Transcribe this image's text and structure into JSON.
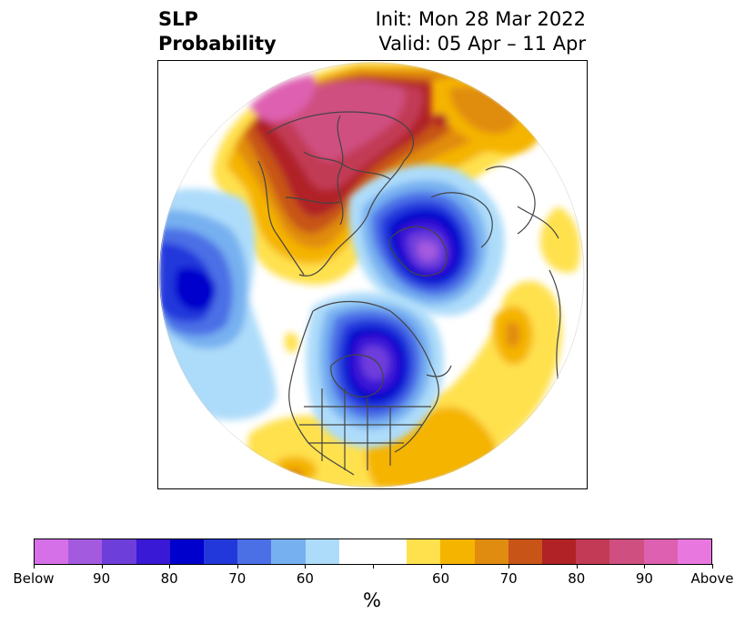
{
  "title": {
    "left": [
      "SLP",
      "Probability"
    ],
    "right": [
      "Init: Mon 28 Mar 2022",
      "Valid: 05 Apr – 11 Apr"
    ]
  },
  "colorbar": {
    "colors": [
      "#d670e8",
      "#a45adf",
      "#6e3edb",
      "#3a19d6",
      "#0000cc",
      "#2338db",
      "#4b70e6",
      "#77b0f0",
      "#addcfa",
      "#ffffff",
      "#ffffff",
      "#ffe14d",
      "#f5b400",
      "#e08c10",
      "#c85418",
      "#b02225",
      "#c23a55",
      "#cf5080",
      "#de60b0",
      "#e878e0"
    ],
    "labels": [
      "Below",
      "90",
      "80",
      "70",
      "60",
      "",
      "60",
      "70",
      "80",
      "90",
      "Above"
    ],
    "unit": "%"
  },
  "map": {
    "projection": "north-polar-stereographic",
    "coastline_color": "#444444",
    "features": [
      "below-normal-slp-north-pacific",
      "below-normal-slp-arctic-greenland",
      "below-normal-slp-central-north-america",
      "above-normal-slp-northern-eurasia",
      "above-normal-slp-eastern-us-atlantic",
      "above-normal-slp-north-atlantic-europe"
    ]
  }
}
